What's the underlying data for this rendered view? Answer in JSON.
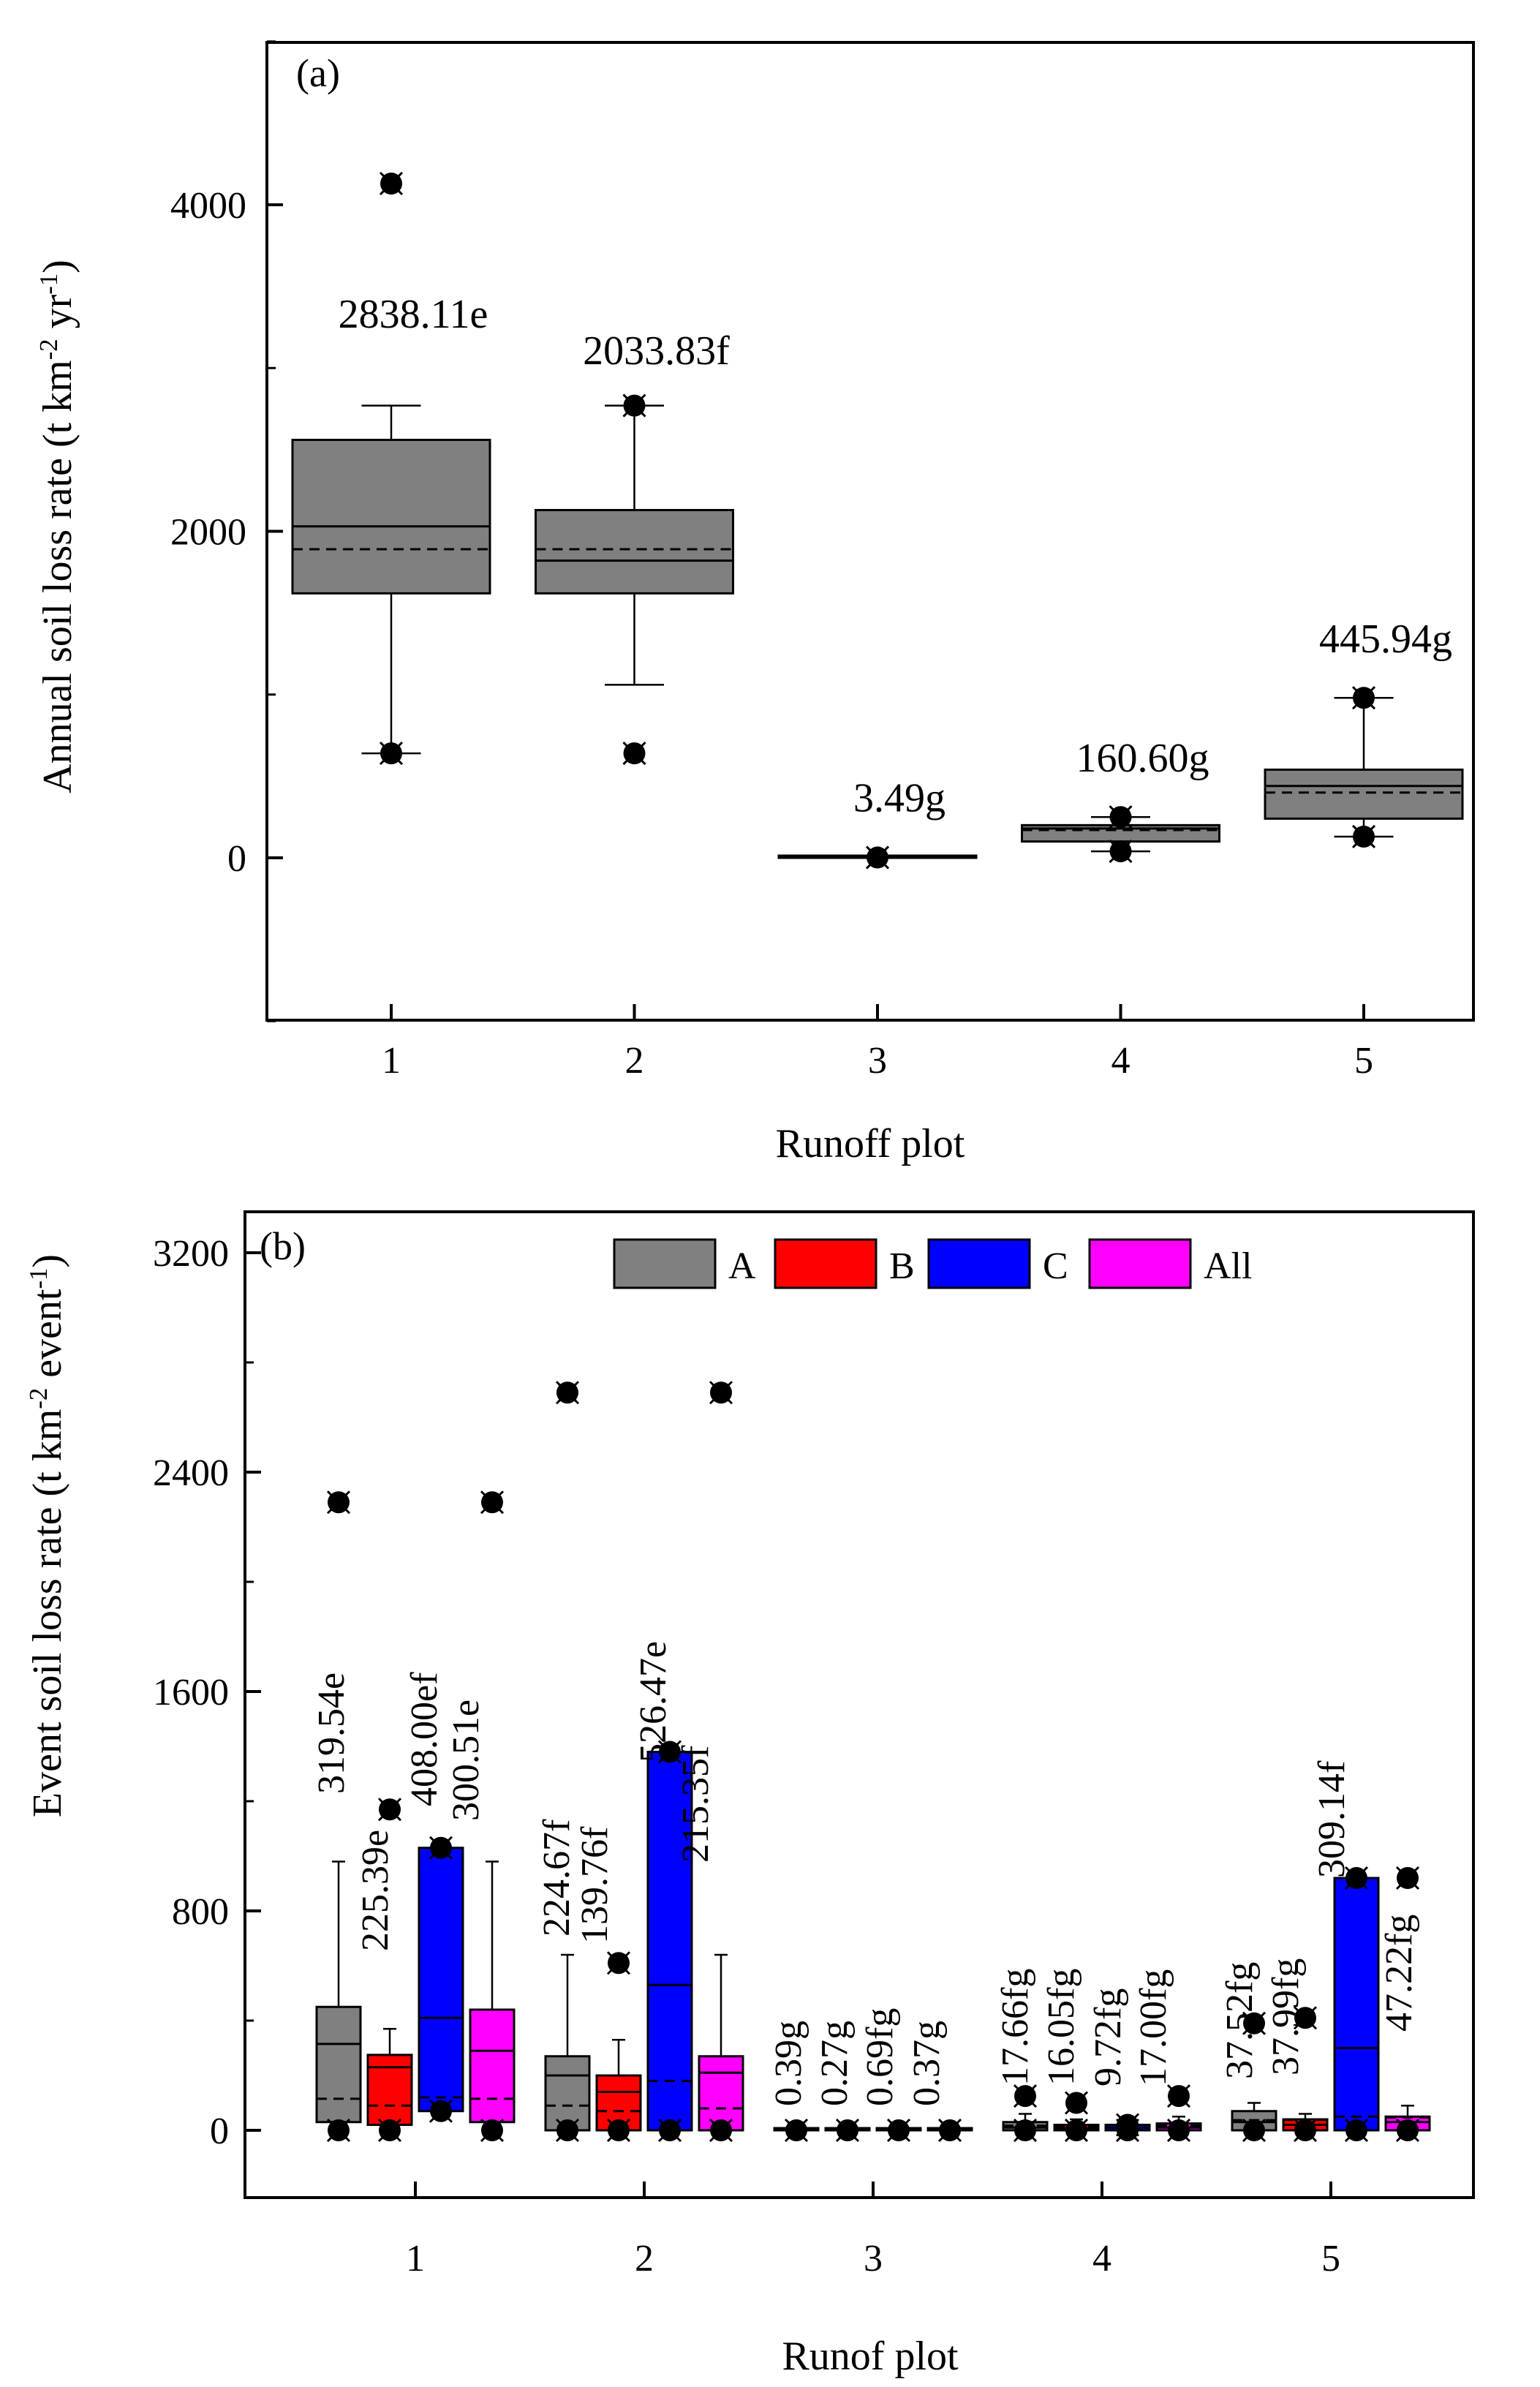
{
  "chart_data": [
    {
      "panel": "(a)",
      "type": "box",
      "xlabel": "Runoff plot",
      "ylabel": "Annual soil loss  rate (t km^-2 yr^-1)",
      "ylabel_parts": [
        "Annual soil loss  rate (t km",
        "-2",
        " yr",
        "-1",
        ")"
      ],
      "ylim": [
        -1000,
        5000
      ],
      "yticks": [
        0,
        2000,
        4000
      ],
      "yminor": [
        -1000,
        1000,
        3000,
        5000
      ],
      "categories": [
        "1",
        "2",
        "3",
        "4",
        "5"
      ],
      "color": "#808080",
      "boxes": [
        {
          "plot": "1",
          "q1": 1620,
          "median": 2030,
          "mean": 1890,
          "q3": 2560,
          "whisker_low": 640,
          "whisker_high": 2770,
          "outliers": [
            4130,
            640
          ],
          "label": "2838.11e"
        },
        {
          "plot": "2",
          "q1": 1620,
          "median": 1820,
          "mean": 1890,
          "q3": 2130,
          "whisker_low": 1060,
          "whisker_high": 2770,
          "outliers": [
            2770,
            640
          ],
          "label": "2033.83f"
        },
        {
          "plot": "3",
          "q1": 0,
          "median": 0,
          "mean": 0,
          "q3": 4,
          "whisker_low": 0,
          "whisker_high": 6,
          "outliers": [
            2
          ],
          "label": "3.49g"
        },
        {
          "plot": "4",
          "q1": 100,
          "median": 180,
          "mean": 170,
          "q3": 200,
          "whisker_low": 40,
          "whisker_high": 250,
          "outliers": [
            250,
            40
          ],
          "label": "160.60g"
        },
        {
          "plot": "5",
          "q1": 240,
          "median": 440,
          "mean": 400,
          "q3": 540,
          "whisker_low": 130,
          "whisker_high": 980,
          "outliers": [
            980,
            130
          ],
          "label": "445.94g"
        }
      ]
    },
    {
      "panel": "(b)",
      "type": "box",
      "xlabel": "Runof plot",
      "ylabel": "Event soil loss rate (t km^-2 event^-1)",
      "ylabel_parts": [
        "Event soil loss rate (t km",
        "-2",
        " event",
        "-1",
        ")"
      ],
      "ylim": [
        -400,
        3200
      ],
      "yticks": [
        0,
        800,
        1600,
        2400,
        3200
      ],
      "yminor": [
        400,
        1200,
        2000,
        2800
      ],
      "categories": [
        "1",
        "2",
        "3",
        "4",
        "5"
      ],
      "legend": {
        "position": "top-center",
        "entries": [
          {
            "name": "A",
            "color": "#808080"
          },
          {
            "name": "B",
            "color": "#ff0000"
          },
          {
            "name": "C",
            "color": "#0000ff"
          },
          {
            "name": "All",
            "color": "#ff00ff"
          }
        ]
      },
      "series": [
        {
          "name": "A",
          "color": "#808080",
          "values": [
            {
              "plot": "1",
              "q1": 30,
              "median": 315,
              "mean": 115,
              "q3": 450,
              "whisker_low": 0,
              "whisker_high": 980,
              "outliers": [
                2290,
                0
              ],
              "label": "319.54e"
            },
            {
              "plot": "2",
              "q1": 0,
              "median": 200,
              "mean": 90,
              "q3": 270,
              "whisker_low": 0,
              "whisker_high": 640,
              "outliers": [
                2690,
                0
              ],
              "label": "224.67f"
            },
            {
              "plot": "3",
              "q1": 0,
              "median": 0,
              "mean": 0,
              "q3": 0,
              "whisker_low": 0,
              "whisker_high": 0,
              "outliers": [
                0
              ],
              "label": "0.39g"
            },
            {
              "plot": "4",
              "q1": 0,
              "median": 10,
              "mean": 17,
              "q3": 30,
              "whisker_low": 0,
              "whisker_high": 60,
              "outliers": [
                125,
                0
              ],
              "label": "17.66fg"
            },
            {
              "plot": "5",
              "q1": 0,
              "median": 30,
              "mean": 37,
              "q3": 70,
              "whisker_low": 0,
              "whisker_high": 100,
              "outliers": [
                390,
                0
              ],
              "label": "37.52fg"
            }
          ]
        },
        {
          "name": "B",
          "color": "#ff0000",
          "values": [
            {
              "plot": "1",
              "q1": 20,
              "median": 230,
              "mean": 90,
              "q3": 275,
              "whisker_low": 0,
              "whisker_high": 370,
              "outliers": [
                1170,
                0
              ],
              "label": "225.39e"
            },
            {
              "plot": "2",
              "q1": 0,
              "median": 140,
              "mean": 70,
              "q3": 200,
              "whisker_low": 0,
              "whisker_high": 330,
              "outliers": [
                610,
                0
              ],
              "label": "139.76f"
            },
            {
              "plot": "3",
              "q1": 0,
              "median": 0,
              "mean": 0,
              "q3": 0,
              "whisker_low": 0,
              "whisker_high": 0,
              "outliers": [
                0
              ],
              "label": "0.27g"
            },
            {
              "plot": "4",
              "q1": 0,
              "median": 8,
              "mean": 16,
              "q3": 20,
              "whisker_low": 0,
              "whisker_high": 40,
              "outliers": [
                100,
                0
              ],
              "label": "16.05fg"
            },
            {
              "plot": "5",
              "q1": 0,
              "median": 20,
              "mean": 38,
              "q3": 40,
              "whisker_low": 0,
              "whisker_high": 60,
              "outliers": [
                410,
                0
              ],
              "label": "37.99fg"
            }
          ]
        },
        {
          "name": "C",
          "color": "#0000ff",
          "values": [
            {
              "plot": "1",
              "q1": 70,
              "median": 410,
              "mean": 120,
              "q3": 1030,
              "whisker_low": 70,
              "whisker_high": 1030,
              "outliers": [
                1030,
                70
              ],
              "label": "408.00ef"
            },
            {
              "plot": "2",
              "q1": 0,
              "median": 530,
              "mean": 180,
              "q3": 1380,
              "whisker_low": 0,
              "whisker_high": 1380,
              "outliers": [
                1380,
                0
              ],
              "label": "526.47e"
            },
            {
              "plot": "3",
              "q1": 0,
              "median": 0,
              "mean": 0,
              "q3": 0,
              "whisker_low": 0,
              "whisker_high": 0,
              "outliers": [
                0
              ],
              "label": "0.69fg"
            },
            {
              "plot": "4",
              "q1": 0,
              "median": 10,
              "mean": 10,
              "q3": 20,
              "whisker_low": 0,
              "whisker_high": 25,
              "outliers": [
                20,
                0
              ],
              "label": "9.72fg"
            },
            {
              "plot": "5",
              "q1": 0,
              "median": 300,
              "mean": 50,
              "q3": 920,
              "whisker_low": 0,
              "whisker_high": 920,
              "outliers": [
                920,
                0
              ],
              "label": "309.14f"
            }
          ]
        },
        {
          "name": "All",
          "color": "#ff00ff",
          "values": [
            {
              "plot": "1",
              "q1": 30,
              "median": 290,
              "mean": 115,
              "q3": 440,
              "whisker_low": 0,
              "whisker_high": 980,
              "outliers": [
                2290,
                0
              ],
              "label": "300.51e"
            },
            {
              "plot": "2",
              "q1": 0,
              "median": 210,
              "mean": 80,
              "q3": 270,
              "whisker_low": 0,
              "whisker_high": 640,
              "outliers": [
                2690,
                0
              ],
              "label": "215.35f"
            },
            {
              "plot": "3",
              "q1": 0,
              "median": 0,
              "mean": 0,
              "q3": 0,
              "whisker_low": 0,
              "whisker_high": 0,
              "outliers": [
                0
              ],
              "label": "0.37g"
            },
            {
              "plot": "4",
              "q1": 0,
              "median": 10,
              "mean": 17,
              "q3": 25,
              "whisker_low": 0,
              "whisker_high": 50,
              "outliers": [
                125,
                0
              ],
              "label": "17.00fg"
            },
            {
              "plot": "5",
              "q1": 0,
              "median": 30,
              "mean": 47,
              "q3": 50,
              "whisker_low": 0,
              "whisker_high": 90,
              "outliers": [
                920,
                0
              ],
              "label": "47.22fg"
            }
          ]
        }
      ]
    }
  ]
}
